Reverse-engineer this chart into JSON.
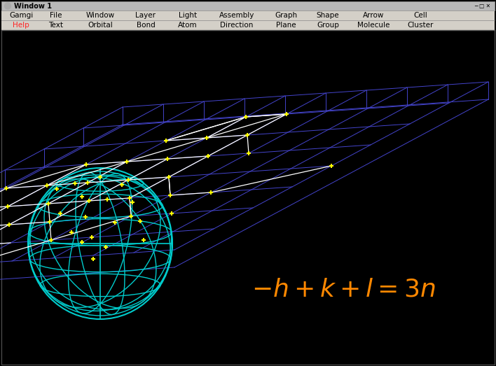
{
  "bg_color": "#000000",
  "window_bar_color": "#c8c8c8",
  "window_title": "Window 1",
  "menu_row1": [
    "Gamgi",
    "File",
    "Window",
    "Layer",
    "Light",
    "Assembly",
    "Graph",
    "Shape",
    "Arrow",
    "Cell"
  ],
  "menu_row2": [
    "Help",
    "Text",
    "Orbital",
    "Bond",
    "Atom",
    "Direction",
    "Plane",
    "Group",
    "Molecule",
    "Cluster"
  ],
  "help_color": "#ff2222",
  "menu_bg": "#d4d0c8",
  "grid_color": "#4444cc",
  "lattice_point_color": "#ffff00",
  "white_line_color": "#ffffff",
  "sphere_color": "#00cccc",
  "equation_color": "#ff8800",
  "equation_fontsize": 26,
  "fig_width": 7.08,
  "fig_height": 5.23,
  "dpi": 100
}
